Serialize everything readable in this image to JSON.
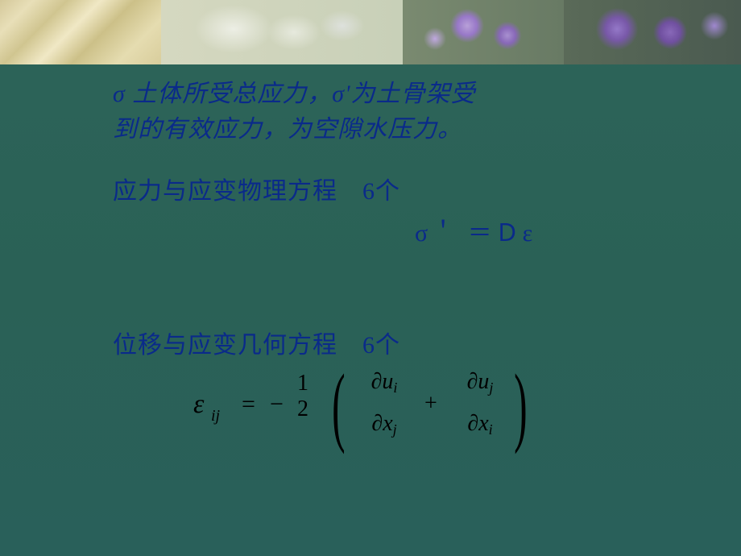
{
  "slide": {
    "background_color": "#2a6156",
    "text_color": "#0a2a8a",
    "math_color": "#000000",
    "intro_line1": "σ 土体所受总应力，σ'为土骨架受",
    "intro_line2": "到的有效应力，为空隙水压力。",
    "section1_label": "应力与应变物理方程　6个",
    "equation1": "σ＇ ＝Ｄε",
    "section2_label": "位移与应变几何方程　6个",
    "math": {
      "epsilon": "ε",
      "epsilon_sub": "ij",
      "equals": "=",
      "minus": "−",
      "half_num": "1",
      "half_den": "2",
      "partial": "∂",
      "u": "u",
      "x": "x",
      "sub_i": "i",
      "sub_j": "j",
      "plus": "+"
    },
    "typography": {
      "intro_fontsize": 30,
      "section_fontsize": 30,
      "equation_fontsize": 30,
      "math_main_fontsize": 30,
      "math_sub_fontsize": 18
    }
  }
}
